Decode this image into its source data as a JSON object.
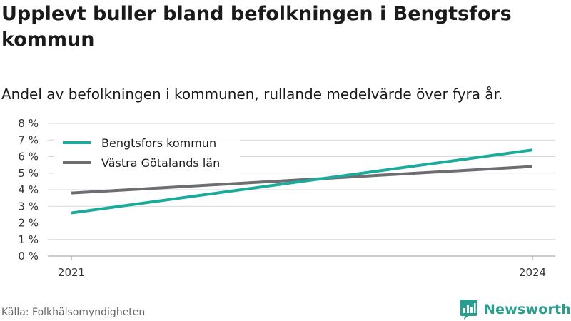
{
  "title": "Upplevt buller bland befolkningen i Bengtsfors kommun",
  "subtitle": "Andel av befolkningen i kommunen, rullande medelvärde över fyra år.",
  "source": "Källa: Folkhälsomyndigheten",
  "logo": {
    "text": "Newsworthy",
    "icon": "newsworthy-chart-icon",
    "color": "#2a9d8f"
  },
  "chart_data": {
    "type": "line",
    "x": [
      2021,
      2024
    ],
    "x_tick_labels": [
      "2021",
      "2024"
    ],
    "ylim": [
      0,
      8
    ],
    "y_ticks": [
      0,
      1,
      2,
      3,
      4,
      5,
      6,
      7,
      8
    ],
    "y_tick_labels": [
      "0 %",
      "1 %",
      "2 %",
      "3 %",
      "4 %",
      "5 %",
      "6 %",
      "7 %",
      "8 %"
    ],
    "grid": true,
    "legend_position": "top-left",
    "series": [
      {
        "name": "Bengtsfors kommun",
        "color": "#1aab9b",
        "values": [
          2.6,
          6.4
        ]
      },
      {
        "name": "Västra Götalands län",
        "color": "#6e6e72",
        "values": [
          3.8,
          5.4
        ]
      }
    ]
  }
}
